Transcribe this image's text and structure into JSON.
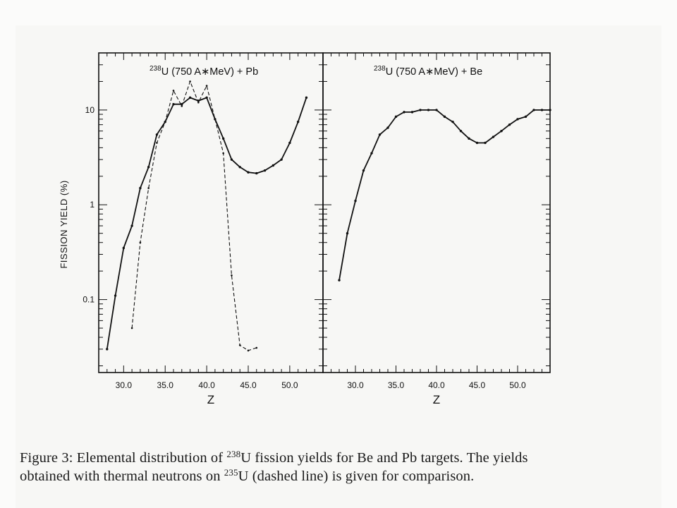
{
  "chart_data": [
    {
      "type": "line",
      "title": {
        "sup": "238",
        "text": "U (750 A∗MeV) + Pb"
      },
      "xlabel": "Z",
      "ylabel": "FISSION YIELD (%)",
      "yscale": "log",
      "xlim": [
        27,
        54
      ],
      "ylim": [
        0.017,
        40
      ],
      "xticks": [
        30,
        35,
        40,
        45,
        50
      ],
      "xtick_labels": [
        "30.0",
        "35.0",
        "40.0",
        "45.0",
        "50.0"
      ],
      "yticks": [
        0.1,
        1,
        10
      ],
      "ytick_labels": [
        "0.1",
        "1",
        "10"
      ],
      "series": [
        {
          "style": "solid",
          "x": [
            28,
            29,
            30,
            31,
            32,
            33,
            34,
            35,
            36,
            37,
            38,
            39,
            40,
            41,
            42,
            43,
            44,
            45,
            46,
            47,
            48,
            49,
            50,
            51,
            52
          ],
          "y": [
            0.03,
            0.11,
            0.35,
            0.6,
            1.5,
            2.5,
            5.5,
            7.5,
            11.5,
            11.5,
            13.5,
            12.5,
            13.5,
            8,
            5,
            3,
            2.5,
            2.2,
            2.15,
            2.3,
            2.6,
            3.0,
            4.5,
            7.5,
            13.5
          ]
        },
        {
          "style": "dashed",
          "x": [
            31,
            32,
            33,
            34,
            35,
            36,
            37,
            38,
            39,
            40,
            41,
            42,
            43,
            44,
            45,
            46
          ],
          "y": [
            0.05,
            0.4,
            1.5,
            4.5,
            7.5,
            16,
            11,
            20,
            12,
            18,
            8,
            3.5,
            0.18,
            0.033,
            0.029,
            0.031
          ]
        }
      ]
    },
    {
      "type": "line",
      "title": {
        "sup": "238",
        "text": "U (750 A∗MeV) + Be"
      },
      "xlabel": "Z",
      "yscale": "log",
      "xlim": [
        26,
        54
      ],
      "ylim": [
        0.017,
        40
      ],
      "xticks": [
        30,
        35,
        40,
        45,
        50
      ],
      "xtick_labels": [
        "30.0",
        "35.0",
        "40.0",
        "45.0",
        "50.0"
      ],
      "series": [
        {
          "style": "solid",
          "x": [
            28,
            29,
            30,
            31,
            32,
            33,
            34,
            35,
            36,
            37,
            38,
            39,
            40,
            41,
            42,
            43,
            44,
            45,
            46,
            47,
            48,
            49,
            50,
            51,
            52,
            53,
            54
          ],
          "y": [
            0.16,
            0.5,
            1.1,
            2.3,
            3.5,
            5.5,
            6.5,
            8.5,
            9.5,
            9.5,
            10,
            10,
            10,
            8.5,
            7.5,
            6,
            5,
            4.5,
            4.5,
            5.2,
            6,
            7,
            8,
            8.5,
            10,
            10,
            10
          ]
        }
      ]
    }
  ],
  "caption": {
    "line1_a": "Figure 3: Elemental distribution of ",
    "line1_sup": "238",
    "line1_b": "U fission yields for Be and Pb targets. The yields",
    "line2_a": "obtained with thermal neutrons on ",
    "line2_sup": "235",
    "line2_b": "U (dashed line) is given for comparison."
  }
}
